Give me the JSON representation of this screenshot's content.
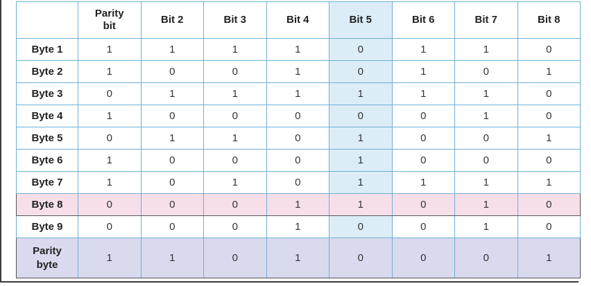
{
  "columns": [
    "",
    "Parity\nbit",
    "Bit 2",
    "Bit 3",
    "Bit 4",
    "Bit 5",
    "Bit 6",
    "Bit 7",
    "Bit 8"
  ],
  "column_labels": {
    "parity_line1": "Parity",
    "parity_line2": "bit",
    "bit2": "Bit 2",
    "bit3": "Bit 3",
    "bit4": "Bit 4",
    "bit5": "Bit 5",
    "bit6": "Bit 6",
    "bit7": "Bit 7",
    "bit8": "Bit 8"
  },
  "rows": [
    {
      "label": "Byte 1",
      "values": [
        "1",
        "1",
        "1",
        "1",
        "0",
        "1",
        "1",
        "0"
      ]
    },
    {
      "label": "Byte 2",
      "values": [
        "1",
        "0",
        "0",
        "1",
        "0",
        "1",
        "0",
        "1"
      ]
    },
    {
      "label": "Byte 3",
      "values": [
        "0",
        "1",
        "1",
        "1",
        "1",
        "1",
        "1",
        "0"
      ]
    },
    {
      "label": "Byte 4",
      "values": [
        "1",
        "0",
        "0",
        "0",
        "0",
        "0",
        "1",
        "0"
      ]
    },
    {
      "label": "Byte 5",
      "values": [
        "0",
        "1",
        "1",
        "0",
        "1",
        "0",
        "0",
        "1"
      ]
    },
    {
      "label": "Byte 6",
      "values": [
        "1",
        "0",
        "0",
        "0",
        "1",
        "0",
        "0",
        "0"
      ]
    },
    {
      "label": "Byte 7",
      "values": [
        "1",
        "0",
        "1",
        "0",
        "1",
        "1",
        "1",
        "1"
      ]
    },
    {
      "label": "Byte 8",
      "values": [
        "0",
        "0",
        "0",
        "1",
        "1",
        "0",
        "1",
        "0"
      ]
    },
    {
      "label": "Byte 9",
      "values": [
        "0",
        "0",
        "0",
        "1",
        "0",
        "0",
        "1",
        "0"
      ]
    }
  ],
  "parity_row": {
    "label_line1": "Parity",
    "label_line2": "byte",
    "values": [
      "1",
      "1",
      "0",
      "1",
      "0",
      "0",
      "0",
      "1"
    ]
  },
  "colors": {
    "grid": "#6db0d6",
    "highlight_column": "#dcedf8",
    "highlight_row": "#f7dfea",
    "parity_row": "#d9daee"
  }
}
